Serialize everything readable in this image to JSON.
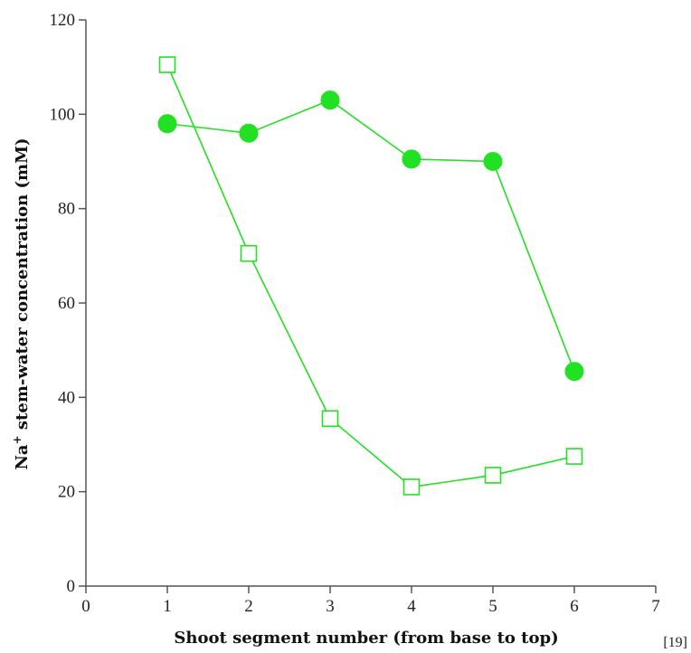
{
  "chart_data": {
    "type": "line",
    "xlabel": "Shoot segment number (from base to top)",
    "ylabel_main": "Na",
    "ylabel_sup": "+",
    "ylabel_rest": " stem-water concentration (mM)",
    "xlim": [
      0,
      7
    ],
    "ylim": [
      0,
      120
    ],
    "x_ticks": [
      "0",
      "1",
      "2",
      "3",
      "4",
      "5",
      "6",
      "7"
    ],
    "y_ticks": [
      "0",
      "20",
      "40",
      "60",
      "80",
      "100",
      "120"
    ],
    "grid": false,
    "legend": "none",
    "series": [
      {
        "marker": "filled-circle",
        "color": "#22e022",
        "x": [
          1,
          2,
          3,
          4,
          5,
          6
        ],
        "y": [
          98,
          96,
          103,
          90.5,
          90,
          45.5
        ]
      },
      {
        "marker": "open-square",
        "color": "#22e022",
        "x": [
          1,
          2,
          3,
          4,
          5,
          6
        ],
        "y": [
          110.5,
          70.5,
          35.5,
          21,
          23.5,
          27.5
        ]
      }
    ]
  },
  "reference": "[19]"
}
